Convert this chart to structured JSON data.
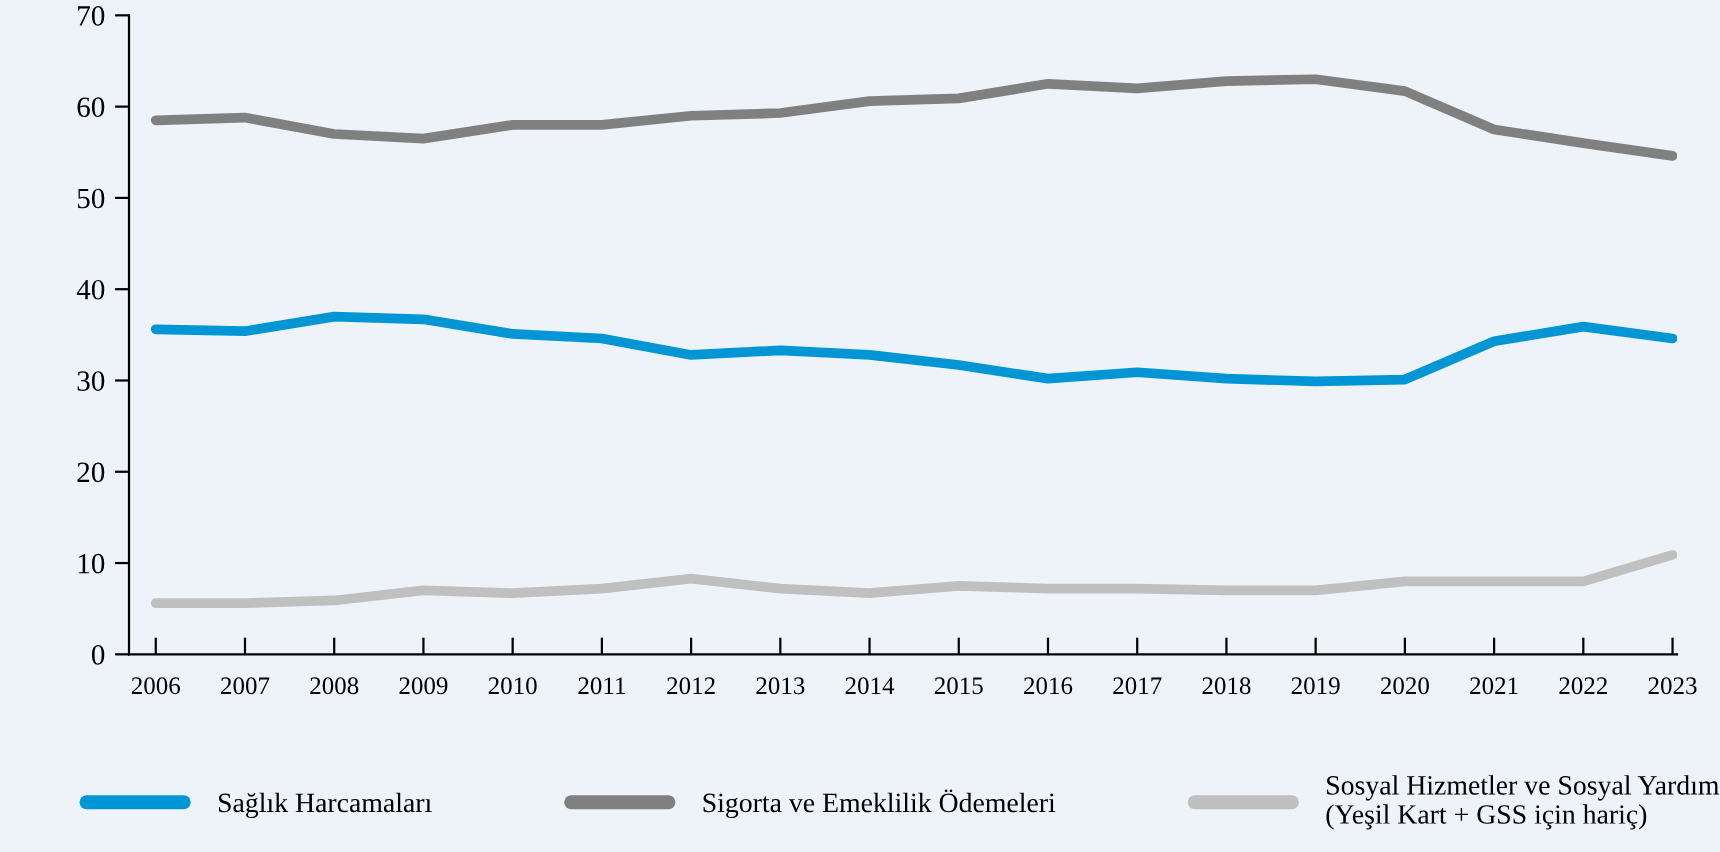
{
  "chart_data": {
    "type": "line",
    "categories": [
      "2006",
      "2007",
      "2008",
      "2009",
      "2010",
      "2011",
      "2012",
      "2013",
      "2014",
      "2015",
      "2016",
      "2017",
      "2018",
      "2019",
      "2020",
      "2021",
      "2022",
      "2023"
    ],
    "series": [
      {
        "name": "Sağlık Harcamaları",
        "color": "#0096d6",
        "values": [
          35.6,
          35.4,
          37,
          36.7,
          35.1,
          34.6,
          32.8,
          33.3,
          32.8,
          31.7,
          30.2,
          30.9,
          30.2,
          29.9,
          30.1,
          34.3,
          35.9,
          34.6
        ]
      },
      {
        "name": "Sigorta ve Emeklilik Ödemeleri",
        "color": "#808080",
        "values": [
          58.5,
          58.8,
          57,
          56.5,
          58,
          58,
          59,
          59.3,
          60.6,
          60.9,
          62.5,
          62,
          62.8,
          63,
          61.7,
          57.5,
          56,
          54.6
        ]
      },
      {
        "name": "Sosyal Hizmetler ve Sosyal Yardım\n(Yeşil Kart + GSS için hariç)",
        "color": "#c0c0c0",
        "values": [
          5.6,
          5.6,
          5.9,
          7,
          6.7,
          7.2,
          8.3,
          7.2,
          6.7,
          7.5,
          7.2,
          7.2,
          7,
          7,
          8,
          8,
          8,
          10.9
        ]
      }
    ],
    "ylim": [
      0,
      70
    ],
    "yticks": [
      0,
      10,
      20,
      30,
      40,
      50,
      60,
      70
    ],
    "grid": false,
    "legend": "bottom",
    "marker": "none",
    "line_style": "solid"
  }
}
